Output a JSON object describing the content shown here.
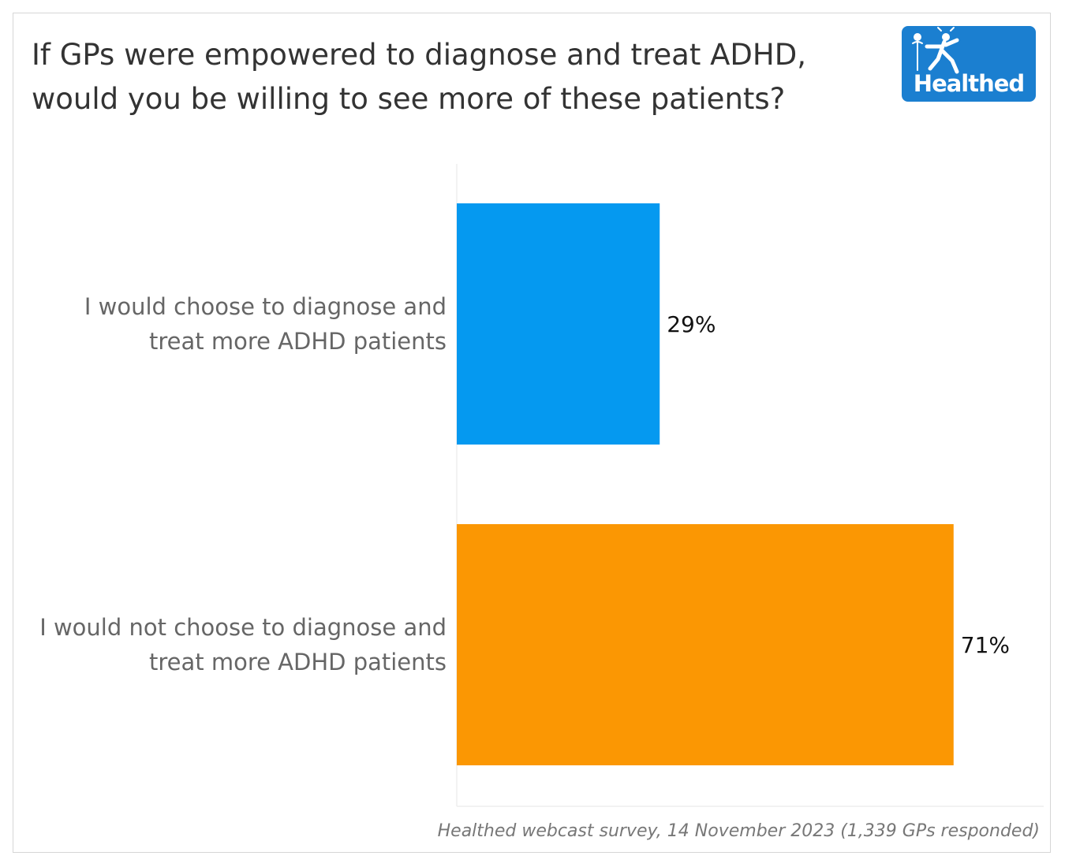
{
  "logo": {
    "text": "Healthed"
  },
  "chart_data": {
    "type": "bar",
    "orientation": "horizontal",
    "title": "If GPs were empowered to diagnose and treat ADHD, would you be willing to see more of these patients?",
    "categories": [
      [
        "I would choose to diagnose and",
        "treat more ADHD patients"
      ],
      [
        "I would not choose to diagnose and",
        "treat more ADHD patients"
      ]
    ],
    "values": [
      29,
      71
    ],
    "value_labels": [
      "29%",
      "71%"
    ],
    "colors": [
      "#0599f0",
      "#fb9703"
    ],
    "xlim": [
      0,
      84
    ],
    "xlabel": "",
    "ylabel": "",
    "grid": false,
    "source": "Healthed webcast survey, 14 November 2023 (1,339 GPs responded)"
  }
}
